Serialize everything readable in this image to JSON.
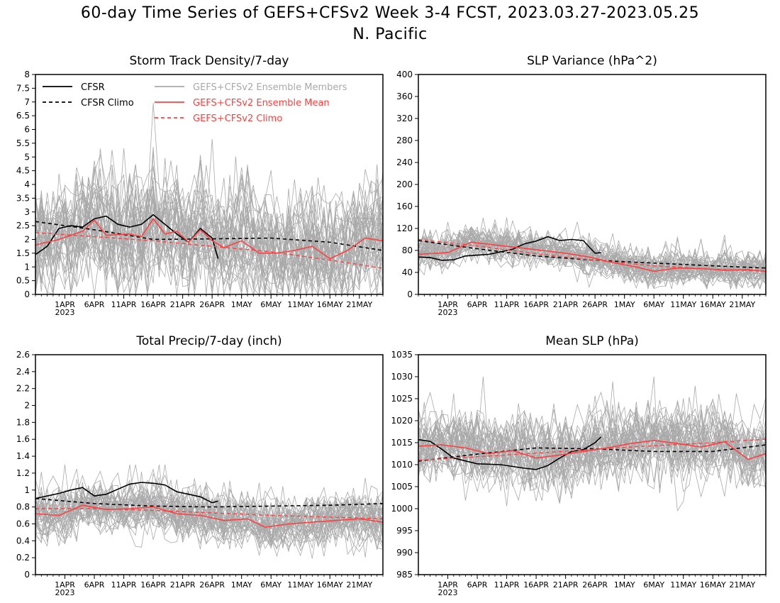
{
  "title": {
    "line1": "60-day Time Series of GEFS+CFSv2 Week 3-4 FCST, 2023.03.27-2023.05.25",
    "line2": "N. Pacific"
  },
  "colors": {
    "cfsr": "#000000",
    "members": "#a9a9a9",
    "ens_mean": "#ff4040",
    "gefs_climo": "#ff4040"
  },
  "legend": {
    "cfsr": "CFSR",
    "cfsr_climo": "CFSR Climo",
    "members": "GEFS+CFSv2 Ensemble Members",
    "ens_mean": "GEFS+CFSv2 Ensemble Mean",
    "gefs_climo": "GEFS+CFSv2 Climo"
  },
  "x_axis": {
    "ticks": [
      {
        "day": 5,
        "label": "1APR",
        "sub": "2023"
      },
      {
        "day": 10,
        "label": "6APR",
        "sub": ""
      },
      {
        "day": 15,
        "label": "11APR",
        "sub": ""
      },
      {
        "day": 20,
        "label": "16APR",
        "sub": ""
      },
      {
        "day": 25,
        "label": "21APR",
        "sub": ""
      },
      {
        "day": 30,
        "label": "26APR",
        "sub": ""
      },
      {
        "day": 35,
        "label": "1MAY",
        "sub": ""
      },
      {
        "day": 40,
        "label": "6MAY",
        "sub": ""
      },
      {
        "day": 45,
        "label": "11MAY",
        "sub": ""
      },
      {
        "day": 50,
        "label": "16MAY",
        "sub": ""
      },
      {
        "day": 55,
        "label": "21MAY",
        "sub": ""
      }
    ]
  },
  "chart_data": [
    {
      "type": "line",
      "title": "Storm Track Density/7-day",
      "x_start": "2023-03-27",
      "x_end": "2023-05-25",
      "ylim": [
        0,
        8
      ],
      "yticks": [
        "0",
        "0.5",
        "1",
        "1.5",
        "2",
        "2.5",
        "3",
        "3.5",
        "4",
        "4.5",
        "5",
        "5.5",
        "6",
        "6.5",
        "7",
        "7.5",
        "8"
      ],
      "legend_location": "top-left",
      "members": {
        "count": 40,
        "center": "ens_mean",
        "spread": 1.05,
        "min": 0,
        "max": 8
      },
      "series": [
        {
          "name": "CFSR",
          "style": "solid-black",
          "x": [
            "2023-03-27",
            "2023-03-29",
            "2023-03-31",
            "2023-04-02",
            "2023-04-04",
            "2023-04-06",
            "2023-04-08",
            "2023-04-10",
            "2023-04-12",
            "2023-04-14",
            "2023-04-16",
            "2023-04-18",
            "2023-04-20",
            "2023-04-22",
            "2023-04-24",
            "2023-04-26",
            "2023-04-27"
          ],
          "y": [
            1.45,
            1.75,
            2.4,
            2.5,
            2.45,
            2.75,
            2.85,
            2.55,
            2.45,
            2.55,
            2.9,
            2.55,
            2.2,
            1.9,
            2.4,
            2.05,
            1.3
          ]
        },
        {
          "name": "CFSR Climo",
          "style": "dashed-black",
          "x": [
            "2023-03-27",
            "2023-04-06",
            "2023-04-16",
            "2023-04-26",
            "2023-05-06",
            "2023-05-16",
            "2023-05-25"
          ],
          "y": [
            2.65,
            2.35,
            2.0,
            2.02,
            2.05,
            1.9,
            1.6
          ]
        },
        {
          "name": "GEFS+CFSv2 Ensemble Mean",
          "style": "solid-red",
          "x": [
            "2023-03-27",
            "2023-03-31",
            "2023-04-04",
            "2023-04-06",
            "2023-04-08",
            "2023-04-12",
            "2023-04-14",
            "2023-04-16",
            "2023-04-18",
            "2023-04-20",
            "2023-04-22",
            "2023-04-24",
            "2023-04-26",
            "2023-04-28",
            "2023-05-01",
            "2023-05-04",
            "2023-05-07",
            "2023-05-10",
            "2023-05-13",
            "2023-05-16",
            "2023-05-19",
            "2023-05-22",
            "2023-05-25"
          ],
          "y": [
            1.8,
            2.0,
            2.3,
            2.7,
            2.15,
            2.2,
            2.1,
            2.75,
            2.2,
            2.3,
            1.9,
            2.35,
            1.95,
            1.7,
            1.95,
            1.5,
            1.5,
            1.6,
            1.75,
            1.3,
            1.6,
            2.05,
            1.95
          ]
        },
        {
          "name": "GEFS+CFSv2 Climo",
          "style": "dashed-red",
          "x": [
            "2023-03-27",
            "2023-04-06",
            "2023-04-16",
            "2023-04-26",
            "2023-05-06",
            "2023-05-16",
            "2023-05-25"
          ],
          "y": [
            2.25,
            2.1,
            1.95,
            1.75,
            1.55,
            1.25,
            0.95
          ]
        }
      ]
    },
    {
      "type": "line",
      "title": "SLP Variance (hPa^2)",
      "x_start": "2023-03-27",
      "x_end": "2023-05-25",
      "ylim": [
        0,
        400
      ],
      "yticks": [
        "0",
        "40",
        "80",
        "120",
        "160",
        "200",
        "240",
        "280",
        "320",
        "360",
        "400"
      ],
      "members": {
        "count": 40,
        "center": "ens_mean",
        "spread": 17,
        "min": 10,
        "max": 200
      },
      "series": [
        {
          "name": "CFSR",
          "style": "solid-black",
          "x": [
            "2023-03-27",
            "2023-03-29",
            "2023-03-31",
            "2023-04-02",
            "2023-04-04",
            "2023-04-08",
            "2023-04-12",
            "2023-04-14",
            "2023-04-16",
            "2023-04-18",
            "2023-04-20",
            "2023-04-22",
            "2023-04-24",
            "2023-04-26",
            "2023-04-27"
          ],
          "y": [
            68,
            67,
            62,
            63,
            70,
            73,
            82,
            92,
            97,
            105,
            98,
            100,
            98,
            75,
            76
          ]
        },
        {
          "name": "CFSR Climo",
          "style": "dashed-black",
          "x": [
            "2023-03-27",
            "2023-04-06",
            "2023-04-16",
            "2023-04-26",
            "2023-05-06",
            "2023-05-16",
            "2023-05-25"
          ],
          "y": [
            98,
            83,
            70,
            62,
            57,
            52,
            48
          ]
        },
        {
          "name": "GEFS+CFSv2 Ensemble Mean",
          "style": "solid-red",
          "x": [
            "2023-03-27",
            "2023-04-01",
            "2023-04-05",
            "2023-04-09",
            "2023-04-13",
            "2023-04-17",
            "2023-04-21",
            "2023-04-25",
            "2023-04-29",
            "2023-05-03",
            "2023-05-06",
            "2023-05-10",
            "2023-05-14",
            "2023-05-18",
            "2023-05-22",
            "2023-05-25"
          ],
          "y": [
            73,
            76,
            95,
            90,
            85,
            80,
            75,
            68,
            58,
            50,
            42,
            48,
            47,
            44,
            45,
            42
          ]
        },
        {
          "name": "GEFS+CFSv2 Climo",
          "style": "dashed-red",
          "x": [
            "2023-03-27",
            "2023-04-06",
            "2023-04-16",
            "2023-04-26",
            "2023-05-06",
            "2023-05-16",
            "2023-05-25"
          ],
          "y": [
            100,
            88,
            74,
            62,
            52,
            46,
            42
          ]
        }
      ]
    },
    {
      "type": "line",
      "title": "Total Precip/7-day (inch)",
      "x_start": "2023-03-27",
      "x_end": "2023-05-25",
      "ylim": [
        0,
        2.6
      ],
      "yticks": [
        "0",
        "0.2",
        "0.4",
        "0.6",
        "0.8",
        "1",
        "1.2",
        "1.4",
        "1.6",
        "1.8",
        "2",
        "2.2",
        "2.4",
        "2.6"
      ],
      "members": {
        "count": 40,
        "center": "ens_mean",
        "spread": 0.16,
        "min": 0.1,
        "max": 1.3
      },
      "series": [
        {
          "name": "CFSR",
          "style": "solid-black",
          "x": [
            "2023-03-27",
            "2023-03-31",
            "2023-04-02",
            "2023-04-04",
            "2023-04-06",
            "2023-04-08",
            "2023-04-12",
            "2023-04-14",
            "2023-04-16",
            "2023-04-18",
            "2023-04-20",
            "2023-04-22",
            "2023-04-24",
            "2023-04-26",
            "2023-04-27"
          ],
          "y": [
            0.9,
            0.96,
            1.0,
            1.03,
            0.93,
            0.95,
            1.07,
            1.09,
            1.08,
            1.06,
            0.98,
            0.95,
            0.92,
            0.85,
            0.87
          ]
        },
        {
          "name": "CFSR Climo",
          "style": "dashed-black",
          "x": [
            "2023-03-27",
            "2023-04-06",
            "2023-04-16",
            "2023-04-26",
            "2023-05-06",
            "2023-05-16",
            "2023-05-25"
          ],
          "y": [
            0.9,
            0.84,
            0.81,
            0.8,
            0.81,
            0.82,
            0.84
          ]
        },
        {
          "name": "GEFS+CFSv2 Ensemble Mean",
          "style": "solid-red",
          "x": [
            "2023-03-27",
            "2023-03-31",
            "2023-04-04",
            "2023-04-08",
            "2023-04-12",
            "2023-04-16",
            "2023-04-20",
            "2023-04-24",
            "2023-04-28",
            "2023-05-02",
            "2023-05-05",
            "2023-05-09",
            "2023-05-13",
            "2023-05-17",
            "2023-05-21",
            "2023-05-25"
          ],
          "y": [
            0.72,
            0.7,
            0.82,
            0.77,
            0.78,
            0.8,
            0.72,
            0.7,
            0.64,
            0.66,
            0.56,
            0.6,
            0.62,
            0.64,
            0.66,
            0.62
          ]
        },
        {
          "name": "GEFS+CFSv2 Climo",
          "style": "dashed-red",
          "x": [
            "2023-03-27",
            "2023-04-06",
            "2023-04-16",
            "2023-04-26",
            "2023-05-06",
            "2023-05-16",
            "2023-05-25"
          ],
          "y": [
            0.78,
            0.78,
            0.76,
            0.73,
            0.7,
            0.68,
            0.66
          ]
        }
      ]
    },
    {
      "type": "line",
      "title": "Mean SLP (hPa)",
      "x_start": "2023-03-27",
      "x_end": "2023-05-25",
      "ylim": [
        985,
        1035
      ],
      "yticks": [
        "985",
        "990",
        "995",
        "1000",
        "1005",
        "1010",
        "1015",
        "1020",
        "1025",
        "1030",
        "1035"
      ],
      "members": {
        "count": 40,
        "center": "ens_mean",
        "spread": 4.2,
        "min": 998,
        "max": 1030
      },
      "series": [
        {
          "name": "CFSR",
          "style": "solid-black",
          "x": [
            "2023-03-27",
            "2023-03-29",
            "2023-03-31",
            "2023-04-02",
            "2023-04-06",
            "2023-04-10",
            "2023-04-14",
            "2023-04-16",
            "2023-04-18",
            "2023-04-20",
            "2023-04-22",
            "2023-04-24",
            "2023-04-26",
            "2023-04-27"
          ],
          "y": [
            1015.7,
            1015.3,
            1013.5,
            1011.5,
            1010.2,
            1010.0,
            1009.2,
            1008.9,
            1009.8,
            1011.5,
            1013.0,
            1013.4,
            1015.0,
            1016.3
          ]
        },
        {
          "name": "CFSR Climo",
          "style": "dashed-black",
          "x": [
            "2023-03-27",
            "2023-04-06",
            "2023-04-16",
            "2023-04-26",
            "2023-05-06",
            "2023-05-16",
            "2023-05-25"
          ],
          "y": [
            1010.8,
            1012.4,
            1013.8,
            1013.6,
            1013.0,
            1013.0,
            1014.5
          ]
        },
        {
          "name": "GEFS+CFSv2 Ensemble Mean",
          "style": "solid-red",
          "x": [
            "2023-03-27",
            "2023-03-31",
            "2023-04-04",
            "2023-04-08",
            "2023-04-12",
            "2023-04-16",
            "2023-04-20",
            "2023-04-24",
            "2023-04-28",
            "2023-05-02",
            "2023-05-06",
            "2023-05-10",
            "2023-05-14",
            "2023-05-18",
            "2023-05-22",
            "2023-05-25"
          ],
          "y": [
            1014.2,
            1014.5,
            1013.8,
            1012.5,
            1013.2,
            1011.5,
            1012.2,
            1013.0,
            1013.8,
            1014.8,
            1015.5,
            1014.8,
            1014.0,
            1015.2,
            1011.2,
            1012.5
          ]
        },
        {
          "name": "GEFS+CFSv2 Climo",
          "style": "dashed-red",
          "x": [
            "2023-03-27",
            "2023-04-06",
            "2023-04-16",
            "2023-04-26",
            "2023-05-06",
            "2023-05-16",
            "2023-05-25"
          ],
          "y": [
            1011.0,
            1011.8,
            1012.6,
            1013.5,
            1014.3,
            1015.0,
            1015.8
          ]
        }
      ]
    }
  ]
}
